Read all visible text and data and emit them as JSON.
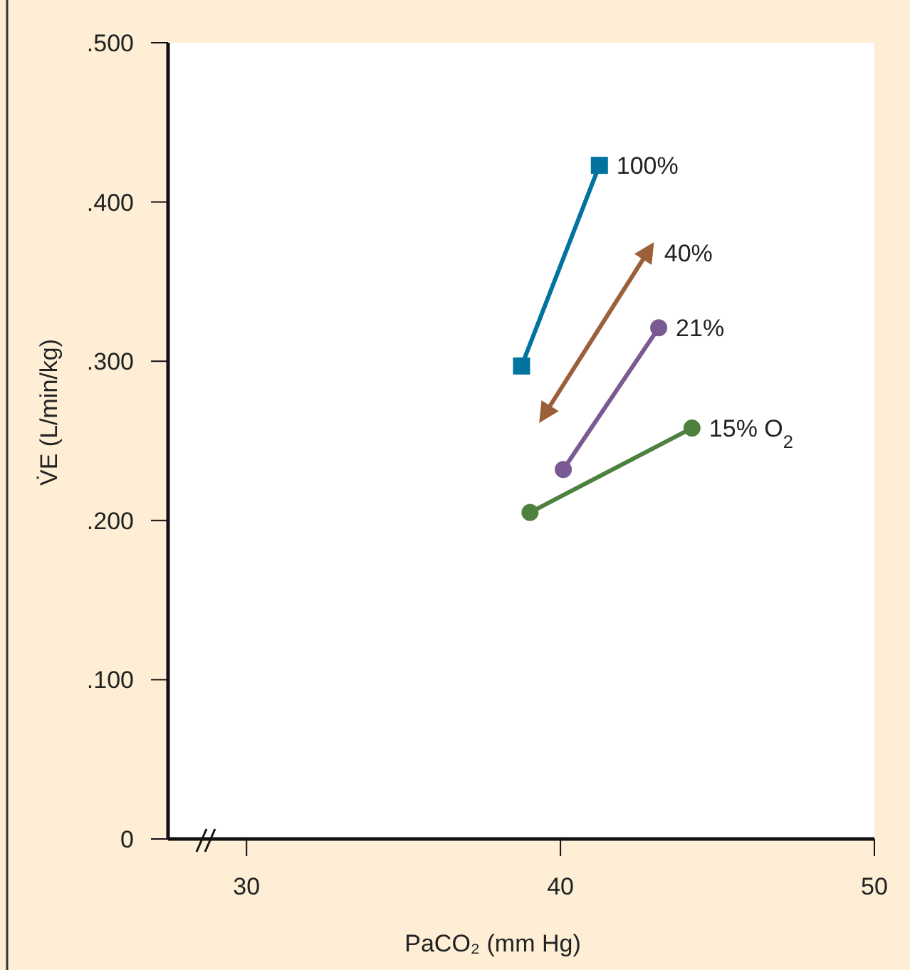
{
  "chart_data": {
    "type": "line",
    "xlabel": "PaCO₂ (mm Hg)",
    "ylabel": "V̇E (L/min/kg)",
    "xlim": [
      27.5,
      50
    ],
    "xticks": [
      30,
      40,
      50
    ],
    "ylim": [
      0,
      0.5
    ],
    "yticks": [
      0,
      {
        "value": 0.1,
        "label": ".100"
      },
      {
        "value": 0.2,
        "label": ".200"
      },
      {
        "value": 0.3,
        "label": ".300"
      },
      {
        "value": 0.4,
        "label": ".400"
      },
      {
        "value": 0.5,
        "label": ".500"
      }
    ],
    "grid": false,
    "legend": false,
    "series": [
      {
        "name": "100%",
        "color": "#00739f",
        "marker": "square",
        "x": [
          38.76,
          41.24
        ],
        "values": [
          0.297,
          0.423
        ]
      },
      {
        "name": "40%",
        "color": "#9a603a",
        "marker": "triangle",
        "x": [
          39.54,
          42.76
        ],
        "values": [
          0.268,
          0.368
        ]
      },
      {
        "name": "21%",
        "color": "#7a5a92",
        "marker": "circle",
        "x": [
          40.09,
          43.13
        ],
        "values": [
          0.232,
          0.321
        ]
      },
      {
        "name": "15% O$_{2}$",
        "color": "#4e8040",
        "marker": "circle",
        "x": [
          39.03,
          44.19
        ],
        "values": [
          0.205,
          0.258
        ]
      }
    ]
  }
}
